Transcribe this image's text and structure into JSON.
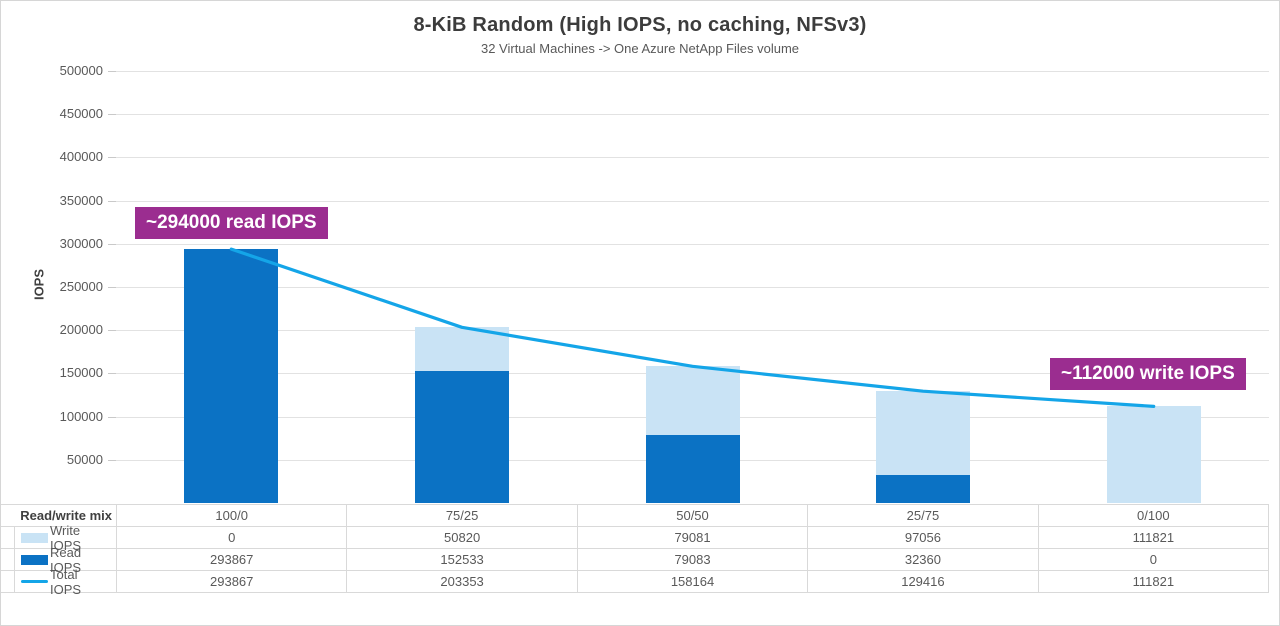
{
  "chart_data": {
    "type": "bar",
    "stacked": true,
    "overlay_line": true,
    "title": "8-KiB Random (High IOPS, no caching, NFSv3)",
    "subtitle": "32 Virtual Machines -> One Azure NetApp Files volume",
    "ylabel": "IOPS",
    "ylim": [
      0,
      500000
    ],
    "ytick_interval": 50000,
    "grid": true,
    "legend_position": "data-table-left",
    "categories_label": "Read/write mix",
    "categories": [
      "100/0",
      "75/25",
      "50/50",
      "25/75",
      "0/100"
    ],
    "series": [
      {
        "name": "Write IOPS",
        "type": "bar",
        "color": "#c9e3f5",
        "values": [
          0,
          50820,
          79081,
          97056,
          111821
        ]
      },
      {
        "name": "Read IOPS",
        "type": "bar",
        "color": "#0b72c4",
        "values": [
          293867,
          152533,
          79083,
          32360,
          0
        ]
      },
      {
        "name": "Total IOPS",
        "type": "line",
        "color": "#14a5e8",
        "values": [
          293867,
          203353,
          158164,
          129416,
          111821
        ]
      }
    ],
    "stack_order_bottom_to_top": [
      "Read IOPS",
      "Write IOPS"
    ],
    "annotations": [
      {
        "text": "~294000 read IOPS",
        "target": "first bar read value"
      },
      {
        "text": "~112000 write IOPS",
        "target": "last bar write value"
      }
    ],
    "annotation_color": "#9b2d90"
  }
}
